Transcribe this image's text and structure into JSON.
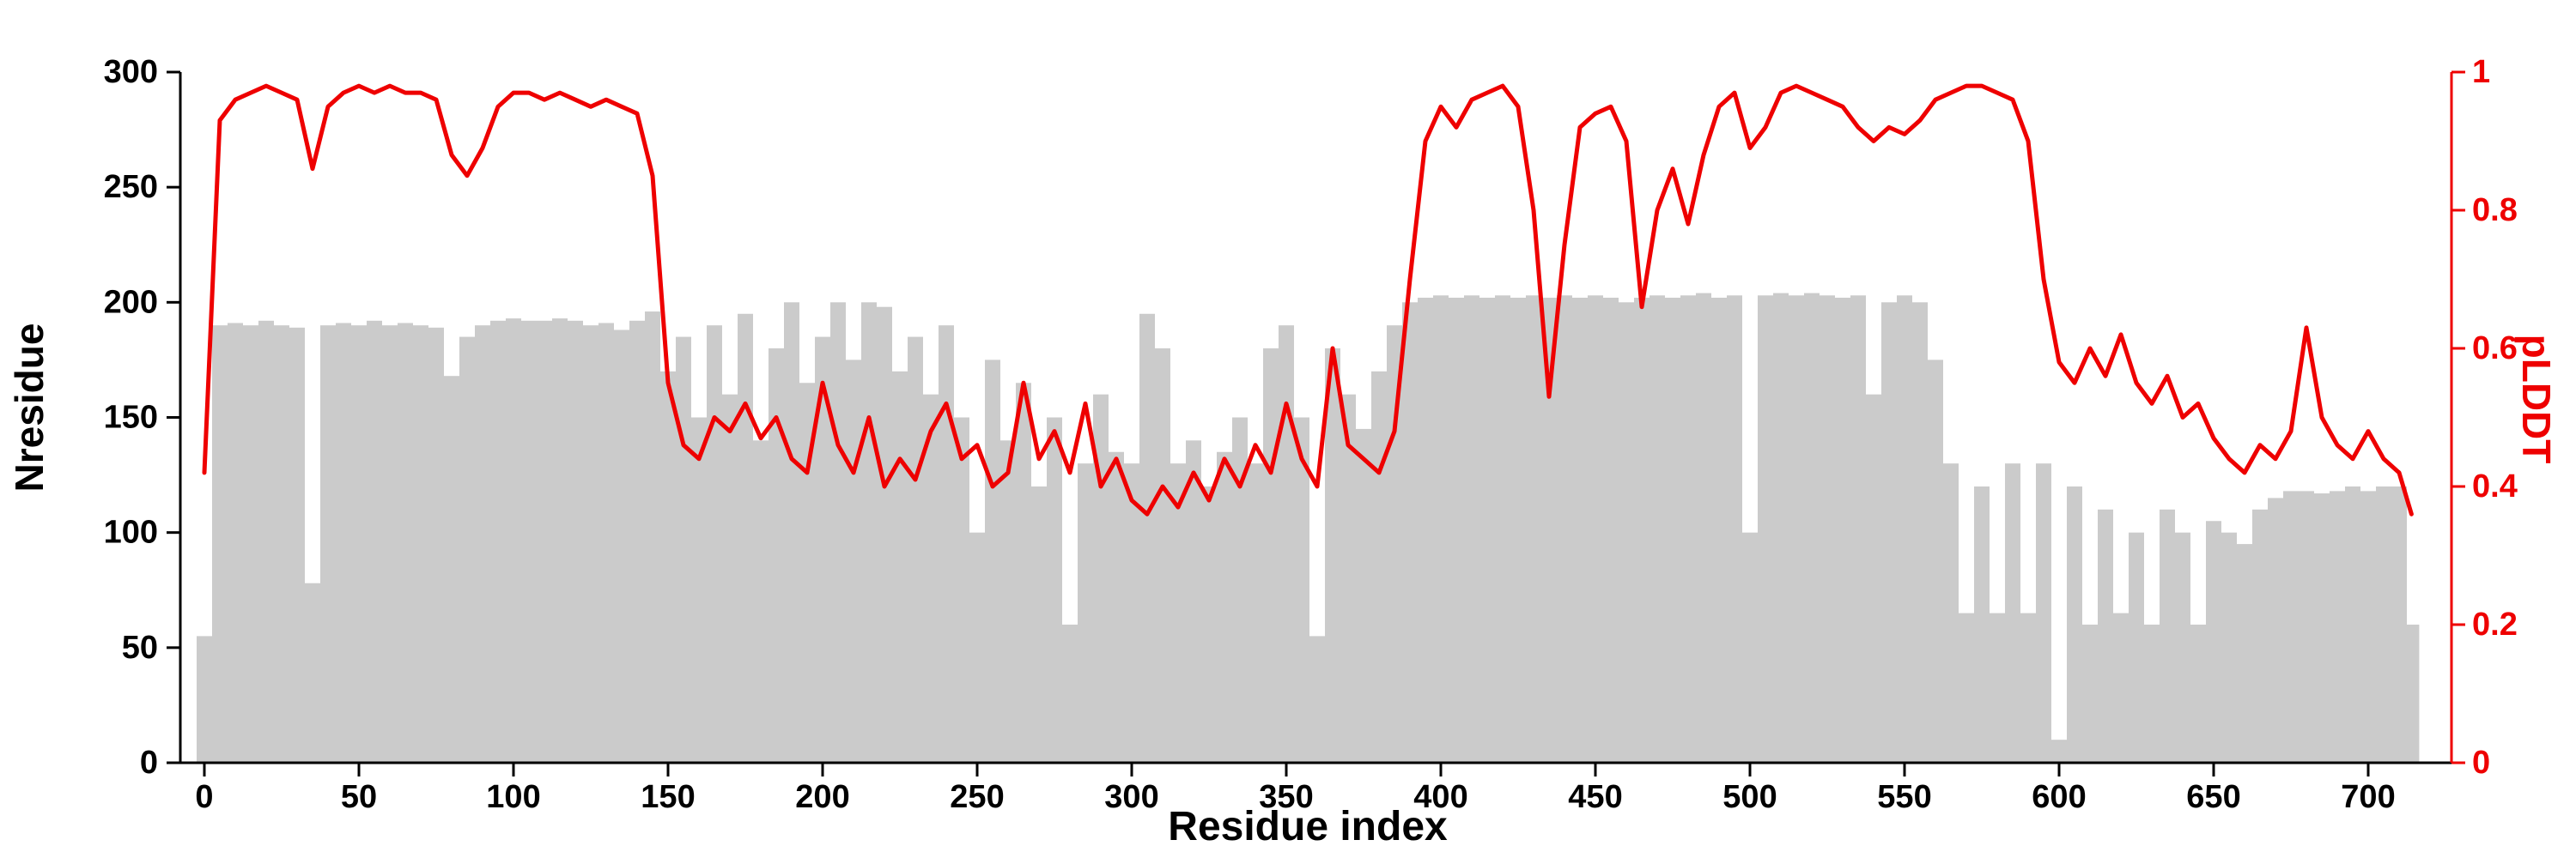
{
  "figure": {
    "background": "#ffffff"
  },
  "chart_data": {
    "type": "bar+line",
    "title": "",
    "xlabel": "Residue index",
    "x_range": [
      0,
      714
    ],
    "x_ticks": [
      0,
      50,
      100,
      150,
      200,
      250,
      300,
      350,
      400,
      450,
      500,
      550,
      600,
      650,
      700
    ],
    "y_left": {
      "label": "Nresidue",
      "range": [
        0,
        300
      ],
      "ticks": [
        0,
        50,
        100,
        150,
        200,
        250,
        300
      ],
      "color": "#000000"
    },
    "y_right": {
      "label": "pLDDT",
      "range": [
        0,
        1
      ],
      "ticks": [
        0,
        0.2,
        0.4,
        0.6,
        0.8,
        1
      ],
      "tick_labels": [
        "0",
        "0.2",
        "0.4",
        "0.6",
        "0.8",
        "1"
      ],
      "color": "#ee0000"
    },
    "colors": {
      "bars": "#cbcbcb",
      "line": "#ee0000",
      "left_axis": "#000000",
      "right_axis": "#ee0000",
      "background": "#ffffff"
    },
    "legend": "none",
    "grid": false,
    "x": [
      0,
      5,
      10,
      15,
      20,
      25,
      30,
      35,
      40,
      45,
      50,
      55,
      60,
      65,
      70,
      75,
      80,
      85,
      90,
      95,
      100,
      105,
      110,
      115,
      120,
      125,
      130,
      135,
      140,
      145,
      150,
      155,
      160,
      165,
      170,
      175,
      180,
      185,
      190,
      195,
      200,
      205,
      210,
      215,
      220,
      225,
      230,
      235,
      240,
      245,
      250,
      255,
      260,
      265,
      270,
      275,
      280,
      285,
      290,
      295,
      300,
      305,
      310,
      315,
      320,
      325,
      330,
      335,
      340,
      345,
      350,
      355,
      360,
      365,
      370,
      375,
      380,
      385,
      390,
      395,
      400,
      405,
      410,
      415,
      420,
      425,
      430,
      435,
      440,
      445,
      450,
      455,
      460,
      465,
      470,
      475,
      480,
      485,
      490,
      495,
      500,
      505,
      510,
      515,
      520,
      525,
      530,
      535,
      540,
      545,
      550,
      555,
      560,
      565,
      570,
      575,
      580,
      585,
      590,
      595,
      600,
      605,
      610,
      615,
      620,
      625,
      630,
      635,
      640,
      645,
      650,
      655,
      660,
      665,
      670,
      675,
      680,
      685,
      690,
      695,
      700,
      705,
      710,
      714
    ],
    "series": [
      {
        "name": "Nresidue",
        "type": "bar",
        "axis": "left",
        "values": [
          55,
          190,
          191,
          190,
          192,
          190,
          189,
          78,
          190,
          191,
          190,
          192,
          190,
          191,
          190,
          189,
          168,
          185,
          190,
          192,
          193,
          192,
          192,
          193,
          192,
          190,
          191,
          188,
          192,
          196,
          170,
          185,
          150,
          190,
          160,
          195,
          140,
          180,
          200,
          165,
          185,
          200,
          175,
          200,
          198,
          170,
          185,
          160,
          190,
          150,
          100,
          175,
          140,
          165,
          120,
          150,
          60,
          130,
          160,
          135,
          130,
          195,
          180,
          130,
          140,
          120,
          135,
          150,
          130,
          180,
          190,
          150,
          55,
          180,
          160,
          145,
          170,
          190,
          200,
          202,
          203,
          202,
          203,
          202,
          203,
          202,
          203,
          202,
          203,
          202,
          203,
          202,
          200,
          202,
          203,
          202,
          203,
          204,
          202,
          203,
          100,
          203,
          204,
          203,
          204,
          203,
          202,
          203,
          160,
          200,
          203,
          200,
          175,
          130,
          65,
          120,
          65,
          130,
          65,
          130,
          10,
          120,
          60,
          110,
          65,
          100,
          60,
          110,
          100,
          60,
          105,
          100,
          95,
          110,
          115,
          118,
          118,
          117,
          118,
          120,
          118,
          120,
          120,
          60
        ]
      },
      {
        "name": "pLDDT",
        "type": "line",
        "axis": "right",
        "values": [
          0.42,
          0.93,
          0.96,
          0.97,
          0.98,
          0.97,
          0.96,
          0.86,
          0.95,
          0.97,
          0.98,
          0.97,
          0.98,
          0.97,
          0.97,
          0.96,
          0.88,
          0.85,
          0.89,
          0.95,
          0.97,
          0.97,
          0.96,
          0.97,
          0.96,
          0.95,
          0.96,
          0.95,
          0.94,
          0.85,
          0.55,
          0.46,
          0.44,
          0.5,
          0.48,
          0.52,
          0.47,
          0.5,
          0.44,
          0.42,
          0.55,
          0.46,
          0.42,
          0.5,
          0.4,
          0.44,
          0.41,
          0.48,
          0.52,
          0.44,
          0.46,
          0.4,
          0.42,
          0.55,
          0.44,
          0.48,
          0.42,
          0.52,
          0.4,
          0.44,
          0.38,
          0.36,
          0.4,
          0.37,
          0.42,
          0.38,
          0.44,
          0.4,
          0.46,
          0.42,
          0.52,
          0.44,
          0.4,
          0.6,
          0.46,
          0.44,
          0.42,
          0.48,
          0.7,
          0.9,
          0.95,
          0.92,
          0.96,
          0.97,
          0.98,
          0.95,
          0.8,
          0.53,
          0.75,
          0.92,
          0.94,
          0.95,
          0.9,
          0.66,
          0.8,
          0.86,
          0.78,
          0.88,
          0.95,
          0.97,
          0.89,
          0.92,
          0.97,
          0.98,
          0.97,
          0.96,
          0.95,
          0.92,
          0.9,
          0.92,
          0.91,
          0.93,
          0.96,
          0.97,
          0.98,
          0.98,
          0.97,
          0.96,
          0.9,
          0.7,
          0.58,
          0.55,
          0.6,
          0.56,
          0.62,
          0.55,
          0.52,
          0.56,
          0.5,
          0.52,
          0.47,
          0.44,
          0.42,
          0.46,
          0.44,
          0.48,
          0.63,
          0.5,
          0.46,
          0.44,
          0.48,
          0.44,
          0.42,
          0.36
        ]
      }
    ]
  }
}
